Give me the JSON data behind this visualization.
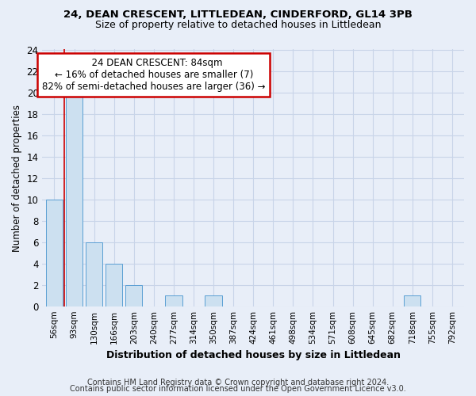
{
  "title1": "24, DEAN CRESCENT, LITTLEDEAN, CINDERFORD, GL14 3PB",
  "title2": "Size of property relative to detached houses in Littledean",
  "xlabel": "Distribution of detached houses by size in Littledean",
  "ylabel": "Number of detached properties",
  "footnote1": "Contains HM Land Registry data © Crown copyright and database right 2024.",
  "footnote2": "Contains public sector information licensed under the Open Government Licence v3.0.",
  "annotation_line1": "24 DEAN CRESCENT: 84sqm",
  "annotation_line2": "← 16% of detached houses are smaller (7)",
  "annotation_line3": "82% of semi-detached houses are larger (36) →",
  "bar_labels": [
    "56sqm",
    "93sqm",
    "130sqm",
    "166sqm",
    "203sqm",
    "240sqm",
    "277sqm",
    "314sqm",
    "350sqm",
    "387sqm",
    "424sqm",
    "461sqm",
    "498sqm",
    "534sqm",
    "571sqm",
    "608sqm",
    "645sqm",
    "682sqm",
    "718sqm",
    "755sqm",
    "792sqm"
  ],
  "bar_values": [
    10,
    20,
    6,
    4,
    2,
    0,
    1,
    0,
    1,
    0,
    0,
    0,
    0,
    0,
    0,
    0,
    0,
    0,
    1,
    0,
    0
  ],
  "bar_color": "#cce0f0",
  "bar_edge_color": "#5a9fd4",
  "ylim": [
    0,
    24
  ],
  "yticks": [
    0,
    2,
    4,
    6,
    8,
    10,
    12,
    14,
    16,
    18,
    20,
    22,
    24
  ],
  "grid_color": "#c8d4e8",
  "bg_color": "#e8eef8",
  "annotation_box_color": "#cc0000",
  "property_line_color": "#cc0000",
  "property_line_x": 0.5
}
